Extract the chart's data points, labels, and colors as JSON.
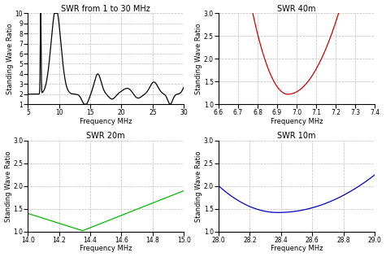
{
  "title_topleft": "SWR from 1 to 30 MHz",
  "title_topright": "SWR 40m",
  "title_botleft": "SWR 20m",
  "title_botright": "SWR 10m",
  "ylabel": "Standing Wave Ratio",
  "xlabel": "Frequency MHz",
  "background_color": "#ffffff",
  "grid_color": "#bbbbbb",
  "plot1": {
    "xlim": [
      5,
      30
    ],
    "ylim": [
      1,
      10
    ],
    "xticks": [
      5,
      10,
      15,
      20,
      25,
      30
    ],
    "yticks": [
      1,
      2,
      3,
      4,
      5,
      6,
      7,
      8,
      9,
      10
    ],
    "color": "#000000"
  },
  "plot2": {
    "xlim": [
      6.6,
      7.4
    ],
    "ylim": [
      1,
      3
    ],
    "xticks": [
      6.6,
      6.7,
      6.8,
      6.9,
      7.0,
      7.1,
      7.2,
      7.3,
      7.4
    ],
    "yticks": [
      1.0,
      1.5,
      2.0,
      2.5,
      3.0
    ],
    "color": "#cc0000"
  },
  "plot3": {
    "xlim": [
      14.0,
      15.0
    ],
    "ylim": [
      1,
      3
    ],
    "xticks": [
      14.0,
      14.2,
      14.4,
      14.6,
      14.8,
      15.0
    ],
    "yticks": [
      1.0,
      1.5,
      2.0,
      2.5,
      3.0
    ],
    "color": "#00bb00"
  },
  "plot4": {
    "xlim": [
      28,
      29
    ],
    "ylim": [
      1,
      3
    ],
    "xticks": [
      28.0,
      28.2,
      28.4,
      28.6,
      28.8,
      29.0
    ],
    "yticks": [
      1.0,
      1.5,
      2.0,
      2.5,
      3.0
    ],
    "color": "#0000cc"
  }
}
